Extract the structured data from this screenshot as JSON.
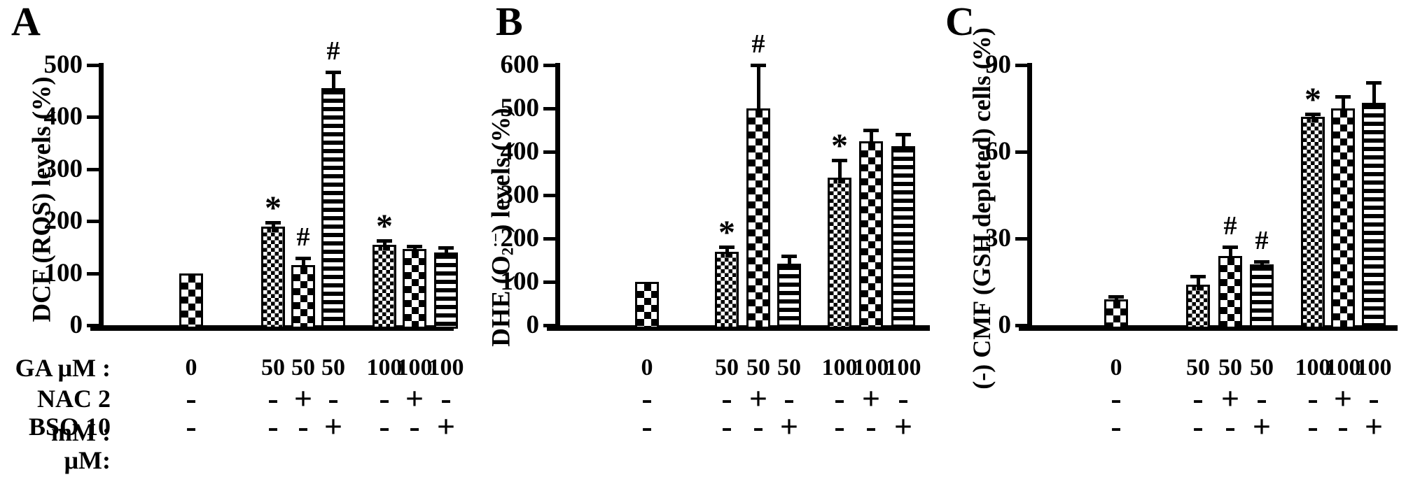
{
  "figure": {
    "row_labels": [
      "GA μM :",
      "NAC 2 mM :",
      "BSO 10 μM:"
    ],
    "significance_symbols": {
      "vs_control": "*",
      "vs_ga_alone": "#"
    },
    "ink_color": "#000000",
    "background_color": "#ffffff"
  },
  "chart_data": [
    {
      "type": "bar",
      "panel": "A",
      "title": "",
      "xlabel": "",
      "ylabel": "DCF (ROS) levels (%)",
      "ylabel_parts": [
        {
          "t": "DCF (ROS) levels (%)",
          "s": ""
        }
      ],
      "ylim": [
        0,
        500
      ],
      "yticks": [
        0,
        100,
        200,
        300,
        400,
        500
      ],
      "grid": false,
      "legend": "none",
      "x_rows": {
        "ga": [
          "0",
          "50",
          "50",
          "50",
          "100",
          "100",
          "100"
        ],
        "nac": [
          "-",
          "-",
          "+",
          "-",
          "-",
          "+",
          "-"
        ],
        "bso": [
          "-",
          "-",
          "-",
          "+",
          "-",
          "-",
          "+"
        ]
      },
      "values": [
        100,
        190,
        115,
        455,
        154,
        147,
        140
      ],
      "errors": [
        0,
        8,
        14,
        31,
        8,
        5,
        9
      ],
      "sig_labels": [
        "",
        "*",
        "#",
        "#",
        "*",
        "",
        ""
      ],
      "patterns": [
        "checker-coarse",
        "checker-fine",
        "checker-coarse",
        "hstripes",
        "checker-fine",
        "checker-coarse",
        "hstripes"
      ]
    },
    {
      "type": "bar",
      "panel": "B",
      "title": "",
      "xlabel": "",
      "ylabel": "DHE (O2·−) levels (%)",
      "ylabel_parts": [
        {
          "t": "DHE (O",
          "s": ""
        },
        {
          "t": "2",
          "s": "sub"
        },
        {
          "t": "·−",
          "s": "sup"
        },
        {
          "t": ") levels (%)",
          "s": ""
        }
      ],
      "ylim": [
        0,
        600
      ],
      "yticks": [
        0,
        100,
        200,
        300,
        400,
        500,
        600
      ],
      "grid": false,
      "legend": "none",
      "x_rows": {
        "ga": [
          "0",
          "50",
          "50",
          "50",
          "100",
          "100",
          "100"
        ],
        "nac": [
          "-",
          "-",
          "+",
          "-",
          "-",
          "+",
          "-"
        ],
        "bso": [
          "-",
          "-",
          "-",
          "+",
          "-",
          "-",
          "+"
        ]
      },
      "values": [
        100,
        170,
        500,
        142,
        340,
        425,
        413
      ],
      "errors": [
        0,
        10,
        100,
        18,
        40,
        25,
        27
      ],
      "sig_labels": [
        "",
        "*",
        "#",
        "",
        "*",
        "",
        ""
      ],
      "patterns": [
        "checker-coarse",
        "checker-fine",
        "checker-coarse",
        "hstripes",
        "checker-fine",
        "checker-coarse",
        "hstripes"
      ]
    },
    {
      "type": "bar",
      "panel": "C",
      "title": "",
      "xlabel": "",
      "ylabel": "(-) CMF (GSH depleted) cells (%)",
      "ylabel_parts": [
        {
          "t": "(-) CMF (GSH depleted) cells (%)",
          "s": ""
        }
      ],
      "ylim": [
        0,
        90
      ],
      "yticks": [
        0,
        30,
        60,
        90
      ],
      "grid": false,
      "legend": "none",
      "x_rows": {
        "ga": [
          "0",
          "50",
          "50",
          "50",
          "100",
          "100",
          "100"
        ],
        "nac": [
          "-",
          "-",
          "+",
          "-",
          "-",
          "+",
          "-"
        ],
        "bso": [
          "-",
          "-",
          "-",
          "+",
          "-",
          "-",
          "+"
        ]
      },
      "values": [
        9,
        14,
        24,
        21,
        72,
        75,
        77
      ],
      "errors": [
        1,
        3,
        3,
        1,
        1,
        4,
        7
      ],
      "sig_labels": [
        "",
        "",
        "#",
        "#",
        "*",
        "",
        ""
      ],
      "patterns": [
        "checker-coarse",
        "checker-fine",
        "checker-coarse",
        "hstripes",
        "checker-fine",
        "checker-coarse",
        "hstripes"
      ]
    }
  ]
}
